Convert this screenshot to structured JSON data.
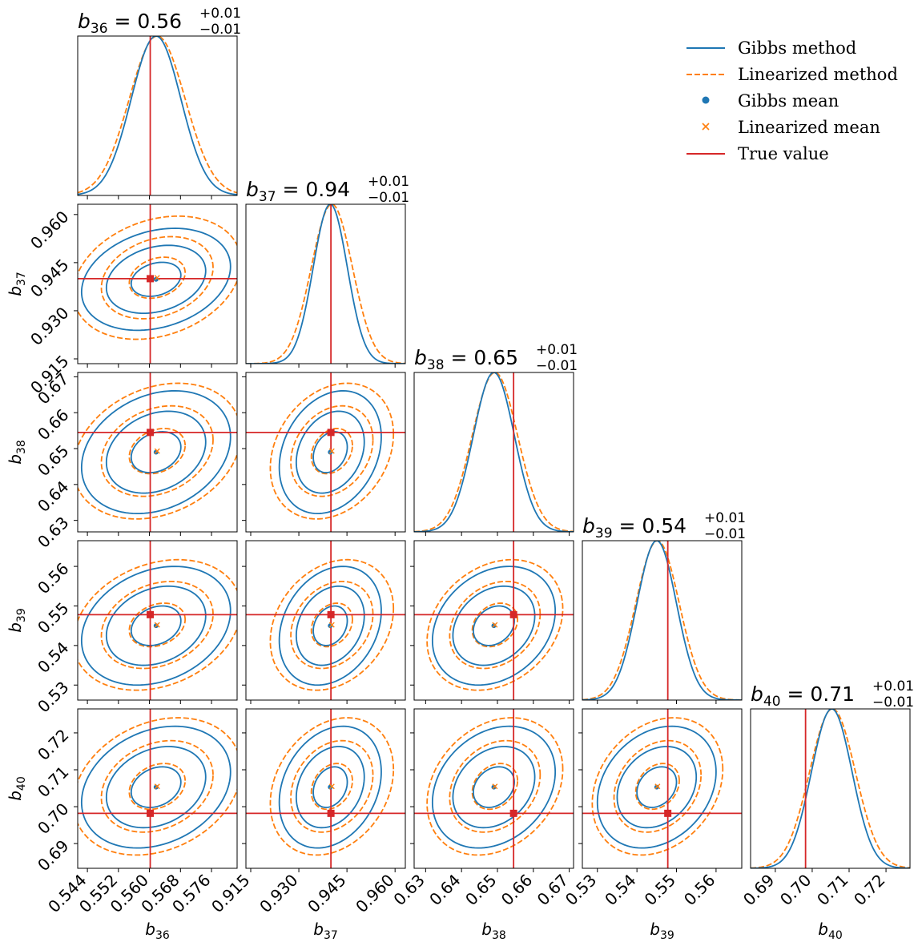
{
  "chart_data": {
    "type": "corner",
    "params": [
      {
        "name": "b36",
        "symbol": "b",
        "subscript": "36",
        "median": "0.56",
        "plus": "+0.01",
        "minus": "−0.01",
        "range": [
          0.5415,
          0.5826
        ],
        "ticks": [
          0.544,
          0.552,
          0.56,
          0.568,
          0.576
        ],
        "tick_labels": [
          "0.544",
          "0.552",
          "0.560",
          "0.568",
          "0.576"
        ],
        "truth": 0.5602,
        "gibbs_mean": 0.5617,
        "lin_mean": 0.562,
        "gibbs_sd": 0.0064,
        "lin_sd": 0.0072
      },
      {
        "name": "b37",
        "symbol": "b",
        "subscript": "37",
        "median": "0.94",
        "plus": "+0.01",
        "minus": "−0.01",
        "range": [
          0.9135,
          0.9632
        ],
        "ticks": [
          0.915,
          0.93,
          0.945,
          0.96
        ],
        "tick_labels": [
          "0.915",
          "0.930",
          "0.945",
          "0.960"
        ],
        "truth": 0.94,
        "gibbs_mean": 0.9398,
        "lin_mean": 0.9403,
        "gibbs_sd": 0.0053,
        "lin_sd": 0.0064
      },
      {
        "name": "b38",
        "symbol": "b",
        "subscript": "38",
        "median": "0.65",
        "plus": "+0.01",
        "minus": "−0.01",
        "range": [
          0.6268,
          0.6712
        ],
        "ticks": [
          0.63,
          0.64,
          0.65,
          0.66,
          0.67
        ],
        "tick_labels": [
          "0.63",
          "0.64",
          "0.65",
          "0.66",
          "0.67"
        ],
        "truth": 0.6545,
        "gibbs_mean": 0.649,
        "lin_mean": 0.6493,
        "gibbs_sd": 0.0057,
        "lin_sd": 0.0063
      },
      {
        "name": "b39",
        "symbol": "b",
        "subscript": "39",
        "median": "0.54",
        "plus": "+0.01",
        "minus": "−0.01",
        "range": [
          0.5262,
          0.5665
        ],
        "ticks": [
          0.53,
          0.54,
          0.55,
          0.56
        ],
        "tick_labels": [
          "0.53",
          "0.54",
          "0.55",
          "0.56"
        ],
        "truth": 0.5478,
        "gibbs_mean": 0.545,
        "lin_mean": 0.5452,
        "gibbs_sd": 0.005,
        "lin_sd": 0.0055
      },
      {
        "name": "b40",
        "symbol": "b",
        "subscript": "40",
        "median": "0.71",
        "plus": "+0.01",
        "minus": "−0.01",
        "range": [
          0.6833,
          0.7265
        ],
        "ticks": [
          0.69,
          0.7,
          0.71,
          0.72
        ],
        "tick_labels": [
          "0.69",
          "0.70",
          "0.71",
          "0.72"
        ],
        "truth": 0.6982,
        "gibbs_mean": 0.7053,
        "lin_mean": 0.7055,
        "gibbs_sd": 0.0055,
        "lin_sd": 0.0062
      }
    ],
    "correlation": 0.25,
    "contour_levels_sigma": [
      1,
      2,
      3
    ],
    "series": [
      {
        "name": "Gibbs method",
        "style": "solid",
        "color": "#1f77b4"
      },
      {
        "name": "Linearized method",
        "style": "dashed",
        "color": "#ff7f0e"
      },
      {
        "name": "Gibbs mean",
        "marker": "circle",
        "color": "#1f77b4"
      },
      {
        "name": "Linearized mean",
        "marker": "x",
        "color": "#ff7f0e"
      },
      {
        "name": "True value",
        "style": "solid",
        "color": "#d62728"
      }
    ],
    "legend_position": "top-right",
    "grid": false
  }
}
